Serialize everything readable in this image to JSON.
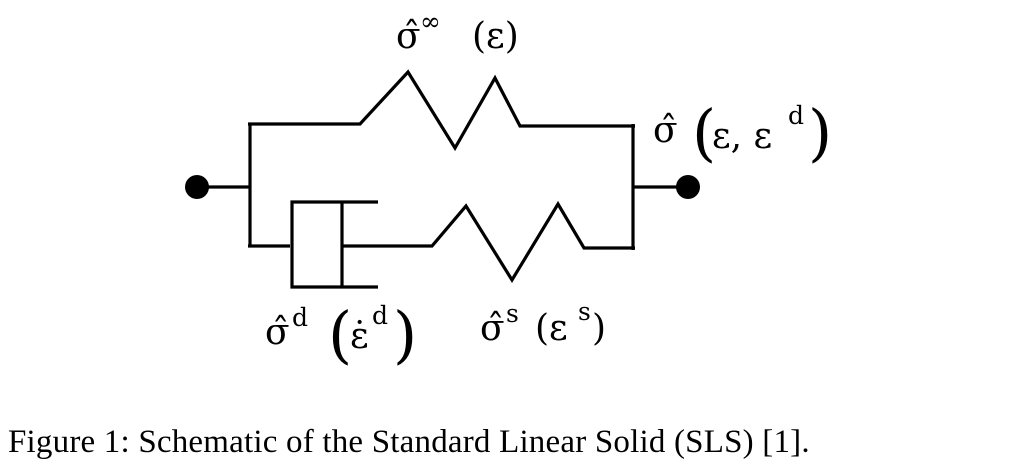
{
  "labels": {
    "equilibrium_spring": {
      "base": "σ̂",
      "superscript": "∞",
      "argument": "(ε)"
    },
    "total_stress": {
      "base": "σ̂",
      "open_paren": "(",
      "argument": "ε, ε",
      "argument_superscript": "d",
      "close_paren": ")"
    },
    "dashpot": {
      "base": "σ̂",
      "superscript": "d",
      "open_paren": "(",
      "argument": "ε̇",
      "argument_superscript": "d",
      "close_paren": ")"
    },
    "series_spring": {
      "base": "σ̂",
      "superscript": "s",
      "argument_open": "(ε",
      "argument_superscript": "s",
      "argument_close": ")"
    }
  },
  "caption": "Figure 1: Schematic of the Standard Linear Solid (SLS) [1]."
}
